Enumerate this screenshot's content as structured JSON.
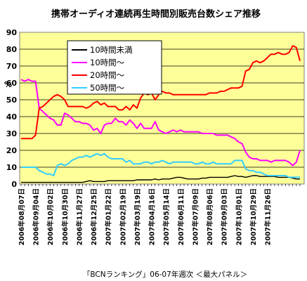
{
  "chart_data": {
    "type": "line",
    "title": "携帯オーディオ連続再生時間別販売台数シェア推移",
    "ylabel": "",
    "unit": "%",
    "ylim": [
      0,
      90
    ],
    "yticks": [
      0,
      10,
      20,
      30,
      40,
      50,
      60,
      70,
      80,
      90
    ],
    "grid": true,
    "legend_position": "top-left",
    "background_color": "#ffff99",
    "source_note": "「BCNランキング」06-07年週次 ＜最大パネル＞",
    "x_tick_labels": [
      "2006年08月07日",
      "2006年09月04日",
      "2006年10月02日",
      "2006年10月30日",
      "2006年11月27日",
      "2006年12月25日",
      "2007年01月22日",
      "2007年02月19日",
      "2007年03月19日",
      "2007年04月16日",
      "2007年05月14日",
      "2007年06月11日",
      "2007年07月09日",
      "2007年08月06日",
      "2007年09月03日",
      "2007年10月01日",
      "2007年10月29日",
      "2007年11月26日"
    ],
    "weeks_per_tick": 4,
    "series": [
      {
        "name": "10時間未満",
        "color": "#000000",
        "values": [
          1,
          1,
          1,
          1,
          1,
          1,
          1,
          1,
          1,
          1,
          1,
          1,
          1,
          1,
          1,
          1,
          1,
          1,
          1.5,
          2,
          1.5,
          1.5,
          1.5,
          1.5,
          2,
          2,
          2,
          2,
          2,
          2,
          2,
          2,
          2.5,
          2.5,
          2.5,
          2.5,
          2.5,
          3,
          2.5,
          3,
          3,
          3,
          3.5,
          4,
          4,
          3.5,
          3,
          3,
          3,
          3,
          3.5,
          3.5,
          4,
          4,
          4,
          4,
          4,
          4,
          4.5,
          5,
          4.5,
          4.5,
          4,
          4.5,
          5,
          5,
          4.5,
          4.5,
          4.5,
          4.5,
          4.5,
          4,
          4,
          4,
          4,
          3.5,
          3,
          3
        ]
      },
      {
        "name": "10時間～",
        "color": "#ff00ff",
        "values": [
          62,
          61,
          62,
          61,
          61,
          45,
          43,
          41,
          39,
          38,
          35,
          35,
          42,
          41,
          39,
          37,
          37,
          36,
          36,
          35,
          32,
          33,
          30,
          35,
          36,
          36,
          39,
          37,
          37,
          35,
          38,
          36,
          33,
          36,
          33,
          33,
          33,
          37,
          32,
          31,
          30,
          31,
          32,
          31,
          32,
          31,
          31,
          31,
          31,
          31,
          30,
          30,
          30,
          30,
          29,
          29,
          29,
          29,
          28,
          27,
          25,
          24,
          19,
          16,
          15,
          15,
          14,
          14,
          14,
          13,
          14,
          14,
          14,
          14,
          13,
          11,
          13,
          20
        ]
      },
      {
        "name": "20時間～",
        "color": "#ff0000",
        "values": [
          27,
          27,
          27,
          27,
          29,
          45,
          46,
          48,
          50,
          52,
          53,
          52,
          50,
          46,
          46,
          46,
          46,
          46,
          45,
          46,
          48,
          49,
          47,
          48,
          46,
          46,
          46,
          44,
          44,
          46,
          44,
          47,
          45,
          51,
          54,
          53,
          54,
          50,
          53,
          55,
          54,
          54,
          53,
          53,
          53,
          53,
          53,
          53,
          53,
          53,
          53,
          53,
          54,
          54,
          54,
          55,
          55,
          56,
          57,
          57,
          57,
          58,
          67,
          68,
          72,
          73,
          72,
          73,
          75,
          77,
          77,
          78,
          77,
          77,
          78,
          82,
          81,
          73
        ]
      },
      {
        "name": "50時間～",
        "color": "#33ccff",
        "values": [
          10,
          10,
          10,
          10,
          10,
          8,
          7,
          6,
          6,
          5,
          11,
          12,
          11,
          12,
          14,
          15,
          16,
          16,
          17,
          16,
          17,
          18,
          17,
          18,
          16,
          15,
          15,
          15,
          15,
          13,
          14,
          12,
          12,
          12,
          13,
          13,
          12,
          13,
          13,
          14,
          13,
          12,
          13,
          13,
          13,
          13,
          13,
          13,
          12,
          12,
          13,
          12,
          12,
          13,
          12,
          12,
          12,
          12,
          12,
          14,
          14,
          14,
          9,
          8,
          8,
          7,
          7,
          6,
          5,
          5,
          5,
          5,
          5,
          5,
          4,
          4,
          4,
          4
        ]
      }
    ]
  }
}
